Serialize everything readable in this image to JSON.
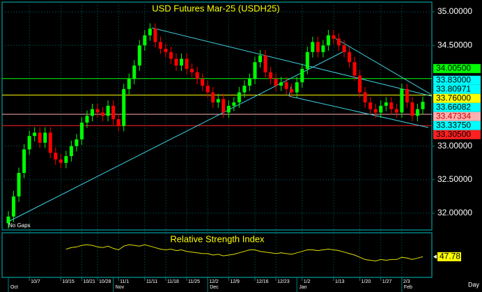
{
  "chart_data": {
    "type": "candlestick",
    "title": "USD Futures Mar-25 (USDH25)",
    "note": "No Gaps",
    "x_unit_label": "Day",
    "categories": [
      null,
      null,
      null,
      null,
      "10/7",
      null,
      null,
      null,
      null,
      null,
      "10/15",
      null,
      null,
      null,
      "10/21",
      null,
      null,
      "10/28",
      null,
      null,
      null,
      "11/1",
      null,
      null,
      null,
      null,
      "11/11",
      null,
      null,
      null,
      "11/18",
      null,
      null,
      null,
      "11/25",
      null,
      null,
      null,
      "12/2",
      null,
      null,
      null,
      "12/9",
      null,
      null,
      null,
      null,
      "12/16",
      null,
      null,
      null,
      "12/23",
      null,
      null,
      null,
      null,
      "1/2",
      null,
      null,
      null,
      null,
      null,
      "1/13",
      null,
      null,
      null,
      null,
      "1/20",
      null,
      null,
      null,
      "1/27",
      null,
      null,
      null,
      "2/3",
      null,
      null,
      null,
      null
    ],
    "month_labels": [
      "Oct",
      null,
      null,
      null,
      null,
      null,
      null,
      null,
      null,
      null,
      null,
      null,
      null,
      null,
      null,
      null,
      null,
      null,
      null,
      null,
      "Nov",
      null,
      null,
      null,
      null,
      null,
      null,
      null,
      null,
      null,
      null,
      null,
      null,
      null,
      null,
      null,
      null,
      null,
      "Dec",
      null,
      null,
      null,
      null,
      null,
      null,
      null,
      null,
      null,
      null,
      null,
      null,
      null,
      null,
      null,
      null,
      "Jan",
      null,
      null,
      null,
      null,
      null,
      null,
      null,
      null,
      null,
      null,
      null,
      null,
      null,
      null,
      null,
      null,
      null,
      null,
      null,
      "Feb",
      null,
      null,
      null,
      null
    ],
    "open": [
      31.85,
      31.95,
      32.25,
      32.6,
      32.95,
      33.15,
      33.2,
      33.05,
      33.2,
      32.9,
      32.8,
      32.75,
      32.85,
      33.0,
      33.1,
      33.35,
      33.45,
      33.55,
      33.5,
      33.45,
      33.6,
      33.4,
      33.3,
      33.85,
      34.0,
      34.2,
      34.5,
      34.65,
      34.75,
      34.55,
      34.45,
      34.4,
      34.3,
      34.2,
      34.3,
      34.15,
      34.1,
      34.0,
      33.9,
      33.8,
      33.65,
      33.7,
      33.5,
      33.6,
      33.65,
      33.8,
      33.9,
      34.0,
      34.25,
      34.35,
      34.1,
      34.0,
      33.9,
      33.95,
      33.85,
      33.8,
      33.95,
      34.15,
      34.4,
      34.55,
      34.4,
      34.5,
      34.65,
      34.6,
      34.5,
      34.4,
      34.25,
      34.05,
      33.8,
      33.65,
      33.55,
      33.5,
      33.6,
      33.65,
      33.55,
      33.5,
      33.85,
      33.65,
      33.45,
      33.55
    ],
    "high": [
      32.03,
      32.33,
      32.68,
      33.03,
      33.23,
      33.28,
      33.28,
      33.28,
      33.28,
      32.98,
      32.88,
      32.93,
      33.08,
      33.18,
      33.43,
      33.53,
      33.63,
      33.63,
      33.58,
      33.68,
      33.68,
      33.48,
      33.93,
      34.08,
      34.28,
      34.58,
      34.73,
      34.83,
      34.83,
      34.63,
      34.53,
      34.48,
      34.38,
      34.38,
      34.38,
      34.23,
      34.18,
      34.08,
      33.98,
      33.88,
      33.78,
      33.78,
      33.68,
      33.73,
      33.88,
      33.98,
      34.08,
      34.33,
      34.43,
      34.43,
      34.18,
      34.08,
      34.03,
      34.03,
      33.93,
      34.03,
      34.23,
      34.48,
      34.63,
      34.63,
      34.58,
      34.73,
      34.73,
      34.68,
      34.58,
      34.48,
      34.33,
      34.13,
      33.88,
      33.73,
      33.63,
      33.68,
      33.73,
      33.73,
      33.63,
      33.93,
      33.93,
      33.73,
      33.63,
      33.74
    ],
    "low": [
      31.77,
      31.87,
      32.17,
      32.52,
      32.87,
      33.07,
      32.97,
      32.97,
      32.82,
      32.72,
      32.67,
      32.67,
      32.77,
      32.92,
      33.02,
      33.27,
      33.37,
      33.42,
      33.37,
      33.37,
      33.32,
      33.22,
      33.22,
      33.77,
      33.92,
      34.12,
      34.42,
      34.57,
      34.47,
      34.37,
      34.32,
      34.22,
      34.12,
      34.12,
      34.07,
      34.02,
      33.92,
      33.82,
      33.72,
      33.57,
      33.57,
      33.42,
      33.42,
      33.52,
      33.57,
      33.72,
      33.82,
      33.92,
      34.17,
      34.02,
      33.92,
      33.82,
      33.82,
      33.77,
      33.72,
      33.72,
      33.87,
      34.07,
      34.32,
      34.32,
      34.32,
      34.42,
      34.52,
      34.42,
      34.32,
      34.17,
      33.97,
      33.72,
      33.57,
      33.47,
      33.42,
      33.42,
      33.52,
      33.47,
      33.42,
      33.42,
      33.57,
      33.37,
      33.37,
      33.47
    ],
    "close": [
      31.95,
      32.25,
      32.6,
      32.95,
      33.15,
      33.2,
      33.05,
      33.2,
      32.9,
      32.8,
      32.75,
      32.85,
      33.0,
      33.1,
      33.35,
      33.45,
      33.55,
      33.5,
      33.45,
      33.6,
      33.4,
      33.3,
      33.85,
      34.0,
      34.2,
      34.5,
      34.65,
      34.75,
      34.55,
      34.45,
      34.4,
      34.3,
      34.2,
      34.3,
      34.15,
      34.1,
      34.0,
      33.9,
      33.8,
      33.65,
      33.7,
      33.5,
      33.6,
      33.65,
      33.8,
      33.9,
      34.0,
      34.25,
      34.35,
      34.1,
      34.0,
      33.9,
      33.95,
      33.85,
      33.8,
      33.95,
      34.15,
      34.4,
      34.55,
      34.4,
      34.5,
      34.65,
      34.6,
      34.5,
      34.4,
      34.25,
      34.05,
      33.8,
      33.65,
      33.55,
      33.5,
      33.6,
      33.65,
      33.55,
      33.5,
      33.85,
      33.65,
      33.45,
      33.55,
      33.66
    ],
    "up_color": "#00ff00",
    "down_color": "#ff0000",
    "ylim": [
      31.75,
      35.145
    ],
    "yticks": [
      {
        "value": 35,
        "label": "35.00000"
      },
      {
        "value": 34.5,
        "label": "34.50000"
      },
      {
        "value": 33,
        "label": "33.00000"
      },
      {
        "value": 32.5,
        "label": "32.50000"
      },
      {
        "value": 32,
        "label": "32.00000"
      }
    ],
    "levels": [
      {
        "value": 34.005,
        "label": "34.00500",
        "color": "#00ff00",
        "text_color": "#000000",
        "horizontal_line": true
      },
      {
        "value": 33.83,
        "label": "33.83000",
        "color": "#00ffff",
        "text_color": "#000000",
        "horizontal_line": false
      },
      {
        "value": 33.80971,
        "label": "33.80971",
        "color": "#00ffff",
        "text_color": "#000000",
        "horizontal_line": false
      },
      {
        "value": 33.76,
        "label": "33.76000",
        "color": "#ffff00",
        "text_color": "#000000",
        "horizontal_line": true
      },
      {
        "value": 33.66082,
        "label": "33.66082",
        "color": "#00ffff",
        "text_color": "#000000",
        "horizontal_line": false
      },
      {
        "value": 33.47334,
        "label": "33.47334",
        "color": "#ffb0b0",
        "text_color": "#c00000",
        "horizontal_line": true
      },
      {
        "value": 33.3375,
        "label": "33.33750",
        "color": "#00ffff",
        "text_color": "#000000",
        "horizontal_line": false
      },
      {
        "value": 33.305,
        "label": "33.30500",
        "color": "#ff2020",
        "text_color": "#000000",
        "horizontal_line": true
      }
    ],
    "rsi": {
      "title": "Relative Strength Index",
      "color": "#e0e000",
      "ylim": [
        20,
        80
      ],
      "values": [
        null,
        null,
        null,
        null,
        null,
        null,
        null,
        null,
        null,
        null,
        null,
        58,
        60,
        61,
        63,
        64,
        63,
        61,
        60,
        62,
        59,
        57,
        62,
        64,
        63,
        62,
        64,
        62,
        60,
        58,
        57,
        58,
        56,
        57,
        55,
        54,
        53,
        52,
        52,
        50,
        51,
        49,
        50,
        51,
        53,
        55,
        57,
        57,
        55,
        54,
        53,
        52,
        53,
        52,
        51,
        53,
        55,
        57,
        57,
        56,
        57,
        58,
        57,
        56,
        54,
        52,
        50,
        47,
        44,
        43,
        42,
        44,
        43,
        44,
        44,
        47,
        46,
        44,
        46,
        47.78
      ],
      "last_label": "47.78"
    }
  }
}
